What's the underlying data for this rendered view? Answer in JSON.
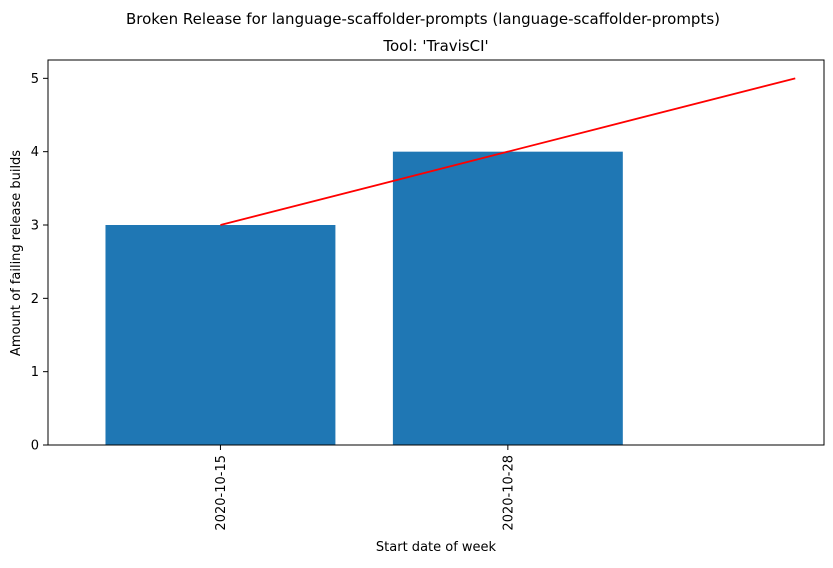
{
  "chart_data": {
    "type": "bar",
    "suptitle": "Broken Release for language-scaffolder-prompts (language-scaffolder-prompts)",
    "title": "Tool: 'TravisCI'",
    "xlabel": "Start date of week",
    "ylabel": "Amount of failing release builds",
    "categories": [
      "2020-10-15",
      "2020-10-28"
    ],
    "values": [
      3,
      4
    ],
    "ylim": [
      0,
      5.25
    ],
    "yticks": [
      0,
      1,
      2,
      3,
      4,
      5
    ],
    "bar_color": "#1f77b4",
    "trend_line": {
      "color": "#ff0000",
      "y": [
        3,
        4,
        5
      ]
    },
    "grid": false,
    "legend": "none"
  }
}
